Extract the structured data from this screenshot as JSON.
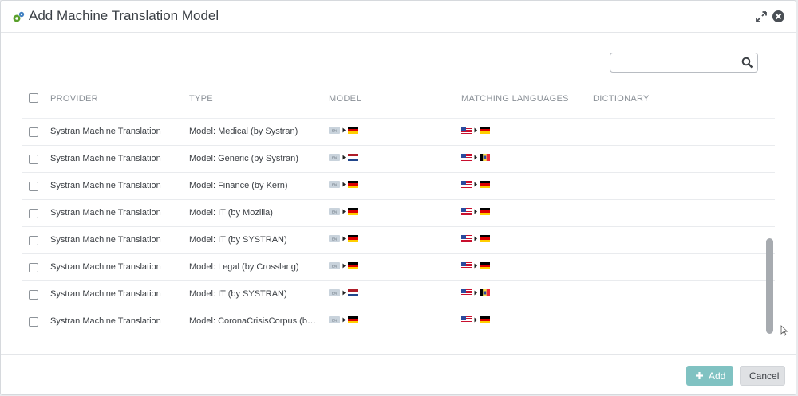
{
  "dialog": {
    "title": "Add Machine Translation Model"
  },
  "search": {
    "value": "",
    "placeholder": ""
  },
  "table": {
    "columns": [
      "PROVIDER",
      "TYPE",
      "MODEL",
      "MATCHING LANGUAGES",
      "DICTIONARY"
    ],
    "rows": [
      {
        "provider": "Systran Machine Translation",
        "type": "Model: Medical (by Systran)",
        "model_flags": [
          "en-badge",
          "de-flag"
        ],
        "matching_flags": [
          "us-flag",
          "de-flag"
        ],
        "dictionary": ""
      },
      {
        "provider": "Systran Machine Translation",
        "type": "Model: Generic (by Systran)",
        "model_flags": [
          "en-badge",
          "nl-flag"
        ],
        "matching_flags": [
          "us-flag",
          "be-flag"
        ],
        "dictionary": ""
      },
      {
        "provider": "Systran Machine Translation",
        "type": "Model: Finance (by Kern)",
        "model_flags": [
          "en-badge",
          "de-flag"
        ],
        "matching_flags": [
          "us-flag",
          "de-flag"
        ],
        "dictionary": ""
      },
      {
        "provider": "Systran Machine Translation",
        "type": "Model: IT (by Mozilla)",
        "model_flags": [
          "en-badge",
          "de-flag"
        ],
        "matching_flags": [
          "us-flag",
          "de-flag"
        ],
        "dictionary": ""
      },
      {
        "provider": "Systran Machine Translation",
        "type": "Model: IT (by SYSTRAN)",
        "model_flags": [
          "en-badge",
          "de-flag"
        ],
        "matching_flags": [
          "us-flag",
          "de-flag"
        ],
        "dictionary": ""
      },
      {
        "provider": "Systran Machine Translation",
        "type": "Model: Legal (by Crosslang)",
        "model_flags": [
          "en-badge",
          "de-flag"
        ],
        "matching_flags": [
          "us-flag",
          "de-flag"
        ],
        "dictionary": ""
      },
      {
        "provider": "Systran Machine Translation",
        "type": "Model: IT (by SYSTRAN)",
        "model_flags": [
          "en-badge",
          "nl-flag"
        ],
        "matching_flags": [
          "us-flag",
          "be-flag"
        ],
        "dictionary": ""
      },
      {
        "provider": "Systran Machine Translation",
        "type": "Model: CoronaCrisisCorpus (by ...",
        "model_flags": [
          "en-badge",
          "de-flag"
        ],
        "matching_flags": [
          "us-flag",
          "de-flag"
        ],
        "dictionary": ""
      }
    ]
  },
  "en_badge_text": "EN",
  "footer": {
    "add_label": "Add",
    "cancel_label": "Cancel"
  },
  "colors": {
    "add_button": "#80c2c2",
    "cancel_button": "#dfe1e4",
    "app_icon": "#5aa02c"
  }
}
